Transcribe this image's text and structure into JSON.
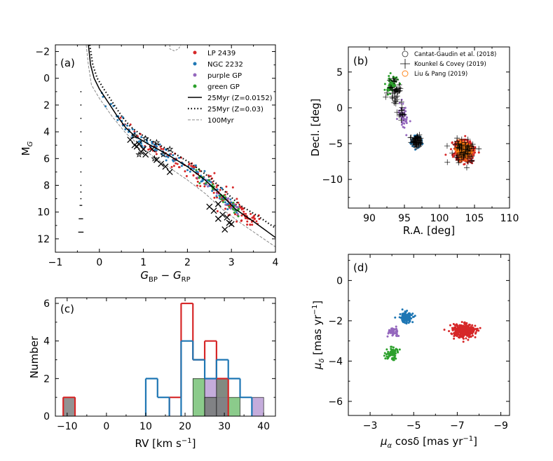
{
  "figure": {
    "panels": [
      "(a)",
      "(b)",
      "(c)",
      "(d)"
    ]
  },
  "colors": {
    "red": "#d62728",
    "blue": "#1f77b4",
    "purple": "#9467bd",
    "green": "#2ca02c",
    "orange": "#ff7f0e",
    "gray": "#7f7f7f"
  },
  "chart_data": [
    {
      "id": "a",
      "label": "(a)",
      "type": "scatter",
      "xlabel": "G_BP − G_RP",
      "ylabel": "M_G",
      "xlim": [
        -1,
        4
      ],
      "ylim": [
        13,
        -2.5
      ],
      "xticks": [
        "−1",
        "0",
        "1",
        "2",
        "3",
        "4"
      ],
      "yticks": [
        "−2",
        "0",
        "2",
        "4",
        "6",
        "8",
        "10",
        "12"
      ],
      "legend": [
        {
          "label": "LP 2439",
          "style": "dot",
          "color": "#d62728"
        },
        {
          "label": "NGC 2232",
          "style": "dot",
          "color": "#1f77b4"
        },
        {
          "label": "purple GP",
          "style": "dot",
          "color": "#9467bd"
        },
        {
          "label": "green GP",
          "style": "dot",
          "color": "#2ca02c"
        },
        {
          "label": "25Myr (Z=0.0152)",
          "style": "solid"
        },
        {
          "label": "25Myr (Z=0.03)",
          "style": "dotted"
        },
        {
          "label": "100Myr",
          "style": "dashed"
        }
      ],
      "isochrone_solid": [
        [
          -0.25,
          -2.5
        ],
        [
          -0.2,
          -1
        ],
        [
          -0.12,
          0
        ],
        [
          0,
          0.8
        ],
        [
          0.2,
          1.8
        ],
        [
          0.4,
          2.8
        ],
        [
          0.6,
          3.7
        ],
        [
          0.8,
          4.3
        ],
        [
          1.1,
          4.9
        ],
        [
          1.5,
          5.6
        ],
        [
          2.0,
          6.6
        ],
        [
          2.4,
          7.6
        ],
        [
          2.8,
          8.8
        ],
        [
          3.1,
          9.8
        ],
        [
          3.5,
          10.7
        ],
        [
          4.0,
          11.9
        ]
      ],
      "isochrone_dotted": [
        [
          -0.22,
          -2.5
        ],
        [
          -0.15,
          -1
        ],
        [
          -0.05,
          0
        ],
        [
          0.1,
          0.8
        ],
        [
          0.3,
          1.8
        ],
        [
          0.5,
          2.8
        ],
        [
          0.7,
          3.6
        ],
        [
          0.9,
          4.1
        ],
        [
          1.2,
          4.7
        ],
        [
          1.6,
          5.4
        ],
        [
          2.1,
          6.4
        ],
        [
          2.5,
          7.4
        ],
        [
          2.9,
          8.6
        ],
        [
          3.2,
          9.5
        ],
        [
          3.6,
          10.3
        ],
        [
          4.0,
          11.2
        ]
      ],
      "isochrone_dashed": [
        [
          -0.3,
          -2.5
        ],
        [
          -0.25,
          -1
        ],
        [
          -0.18,
          0.5
        ],
        [
          0.0,
          1.5
        ],
        [
          0.3,
          2.9
        ],
        [
          0.6,
          4.1
        ],
        [
          0.9,
          5.0
        ],
        [
          1.2,
          5.8
        ],
        [
          1.6,
          6.7
        ],
        [
          2.0,
          7.6
        ],
        [
          2.4,
          8.6
        ],
        [
          2.8,
          9.8
        ],
        [
          3.2,
          10.8
        ],
        [
          3.6,
          11.7
        ],
        [
          4.0,
          12.6
        ]
      ],
      "hook_dashed": [
        [
          1.6,
          -2.5
        ],
        [
          1.6,
          -2.2
        ],
        [
          1.7,
          -2.05
        ],
        [
          1.8,
          -2.2
        ],
        [
          1.85,
          -2.5
        ]
      ],
      "wd_sequence_x": -0.42,
      "wd_sequence_y": [
        1,
        2,
        3,
        4,
        5,
        6,
        7,
        8,
        8.5,
        9.0,
        9.5,
        10.5,
        11.5
      ],
      "wd_sequence_dx": [
        0,
        0,
        0,
        0,
        0,
        0,
        0,
        0,
        0,
        0,
        0.03,
        0.05,
        0.06
      ],
      "x_markers": [
        [
          0.7,
          4.6
        ],
        [
          0.8,
          5.0
        ],
        [
          0.9,
          4.9
        ],
        [
          1.0,
          5.3
        ],
        [
          1.05,
          5.7
        ],
        [
          0.95,
          5.5
        ],
        [
          1.2,
          5.3
        ],
        [
          1.3,
          6.1
        ],
        [
          1.4,
          6.4
        ],
        [
          1.6,
          7.0
        ],
        [
          1.5,
          6.6
        ],
        [
          0.85,
          5.1
        ],
        [
          2.5,
          9.6
        ],
        [
          2.6,
          9.9
        ],
        [
          2.7,
          9.4
        ],
        [
          2.8,
          10.2
        ],
        [
          2.9,
          10.4
        ],
        [
          2.95,
          10.8
        ],
        [
          2.85,
          11.3
        ],
        [
          3.0,
          10.9
        ],
        [
          2.7,
          10.5
        ]
      ],
      "star_markers": [
        [
          0.8,
          4.3
        ],
        [
          1.05,
          4.5
        ],
        [
          1.6,
          5.3
        ],
        [
          1.45,
          5.7
        ],
        [
          1.25,
          6.0
        ],
        [
          0.9,
          5.7
        ],
        [
          1.3,
          4.8
        ]
      ]
    },
    {
      "id": "b",
      "label": "(b)",
      "type": "scatter",
      "xlabel": "R.A. [deg]",
      "ylabel": "Decl. [deg]",
      "xlim": [
        87,
        110
      ],
      "ylim": [
        -14,
        8.5
      ],
      "xticks": [
        "90",
        "95",
        "100",
        "105",
        "110"
      ],
      "yticks": [
        "5",
        "0",
        "−5",
        "−10"
      ],
      "legend": [
        {
          "label": "Cantat-Gaudin et al. (2018)",
          "style": "circle"
        },
        {
          "label": "Kounkel & Covey (2019)",
          "style": "plus"
        },
        {
          "label": "Liu  &  Pang  (2019)",
          "style": "orange-circle"
        }
      ],
      "clusters": [
        {
          "name": "LP 2439",
          "color": "#d62728",
          "center": [
            103.5,
            -6.0
          ],
          "spread": [
            1.3,
            1.3
          ],
          "n": 650
        },
        {
          "name": "NGC 2232",
          "color": "#1f77b4",
          "center": [
            96.8,
            -4.7
          ],
          "spread": [
            0.6,
            0.6
          ],
          "n": 280
        },
        {
          "name": "purple GP",
          "color": "#9467bd",
          "center": [
            94.8,
            -1.5
          ],
          "spread": [
            0.6,
            1.8
          ],
          "n": 50
        },
        {
          "name": "green GP",
          "color": "#2ca02c",
          "center": [
            93.2,
            3.2
          ],
          "spread": [
            0.9,
            1.1
          ],
          "n": 70
        }
      ]
    },
    {
      "id": "c",
      "label": "(c)",
      "type": "bar",
      "xlabel": "RV [km s^−1]",
      "ylabel": "Number",
      "xlim": [
        -13,
        43
      ],
      "ylim": [
        0,
        6.3
      ],
      "xticks": [
        "−10",
        "0",
        "10",
        "20",
        "30",
        "40"
      ],
      "yticks": [
        "0",
        "2",
        "4",
        "6"
      ],
      "bin_edges": [
        -11,
        -8,
        -5,
        -2,
        1,
        4,
        7,
        10,
        13,
        16,
        19,
        22,
        25,
        28,
        31,
        34,
        37,
        40
      ],
      "series": [
        {
          "name": "LP 2439",
          "style": "step",
          "color": "#d62728",
          "values": [
            1,
            0,
            0,
            0,
            0,
            0,
            0,
            0,
            0,
            1,
            6,
            3,
            4,
            2,
            0,
            0,
            0
          ]
        },
        {
          "name": "NGC 2232",
          "style": "step",
          "color": "#1f77b4",
          "values": [
            0,
            0,
            0,
            0,
            0,
            0,
            0,
            2,
            1,
            0,
            4,
            3,
            2,
            3,
            2,
            1,
            0
          ]
        },
        {
          "name": "green GP",
          "style": "fill",
          "color": "#2ca02c",
          "values": [
            0,
            0,
            0,
            0,
            0,
            0,
            0,
            0,
            0,
            0,
            0,
            2,
            1,
            2,
            1,
            0,
            0
          ]
        },
        {
          "name": "purple GP",
          "style": "fill",
          "color": "#9467bd",
          "values": [
            0,
            0,
            0,
            0,
            0,
            0,
            0,
            0,
            0,
            0,
            0,
            0,
            2,
            1,
            0,
            0,
            1
          ]
        },
        {
          "name": "overlap",
          "style": "fill",
          "color": "#7f7f7f",
          "values": [
            1,
            0,
            0,
            0,
            0,
            0,
            0,
            0,
            0,
            0,
            0,
            0,
            1,
            2,
            0,
            0,
            0
          ]
        }
      ]
    },
    {
      "id": "d",
      "label": "(d)",
      "type": "scatter",
      "xlabel": "μ_α cosδ [mas yr^−1]",
      "ylabel": "μ_δ [mas yr^−1]",
      "xlim": [
        -2.0,
        -9.4
      ],
      "ylim": [
        -6.7,
        1.3
      ],
      "xticks": [
        "−3",
        "−5",
        "−7",
        "−9"
      ],
      "yticks": [
        "0",
        "−2",
        "−4",
        "−6"
      ],
      "clusters": [
        {
          "name": "LP 2439",
          "color": "#d62728",
          "center": [
            -7.3,
            -2.5
          ],
          "spread": [
            0.5,
            0.32
          ],
          "n": 350
        },
        {
          "name": "NGC 2232",
          "color": "#1f77b4",
          "center": [
            -4.65,
            -1.85
          ],
          "spread": [
            0.28,
            0.25
          ],
          "n": 150
        },
        {
          "name": "purple GP",
          "color": "#9467bd",
          "center": [
            -4.1,
            -2.55
          ],
          "spread": [
            0.25,
            0.22
          ],
          "n": 45
        },
        {
          "name": "green GP",
          "color": "#2ca02c",
          "center": [
            -4.0,
            -3.65
          ],
          "spread": [
            0.32,
            0.3
          ],
          "n": 70
        }
      ]
    }
  ]
}
